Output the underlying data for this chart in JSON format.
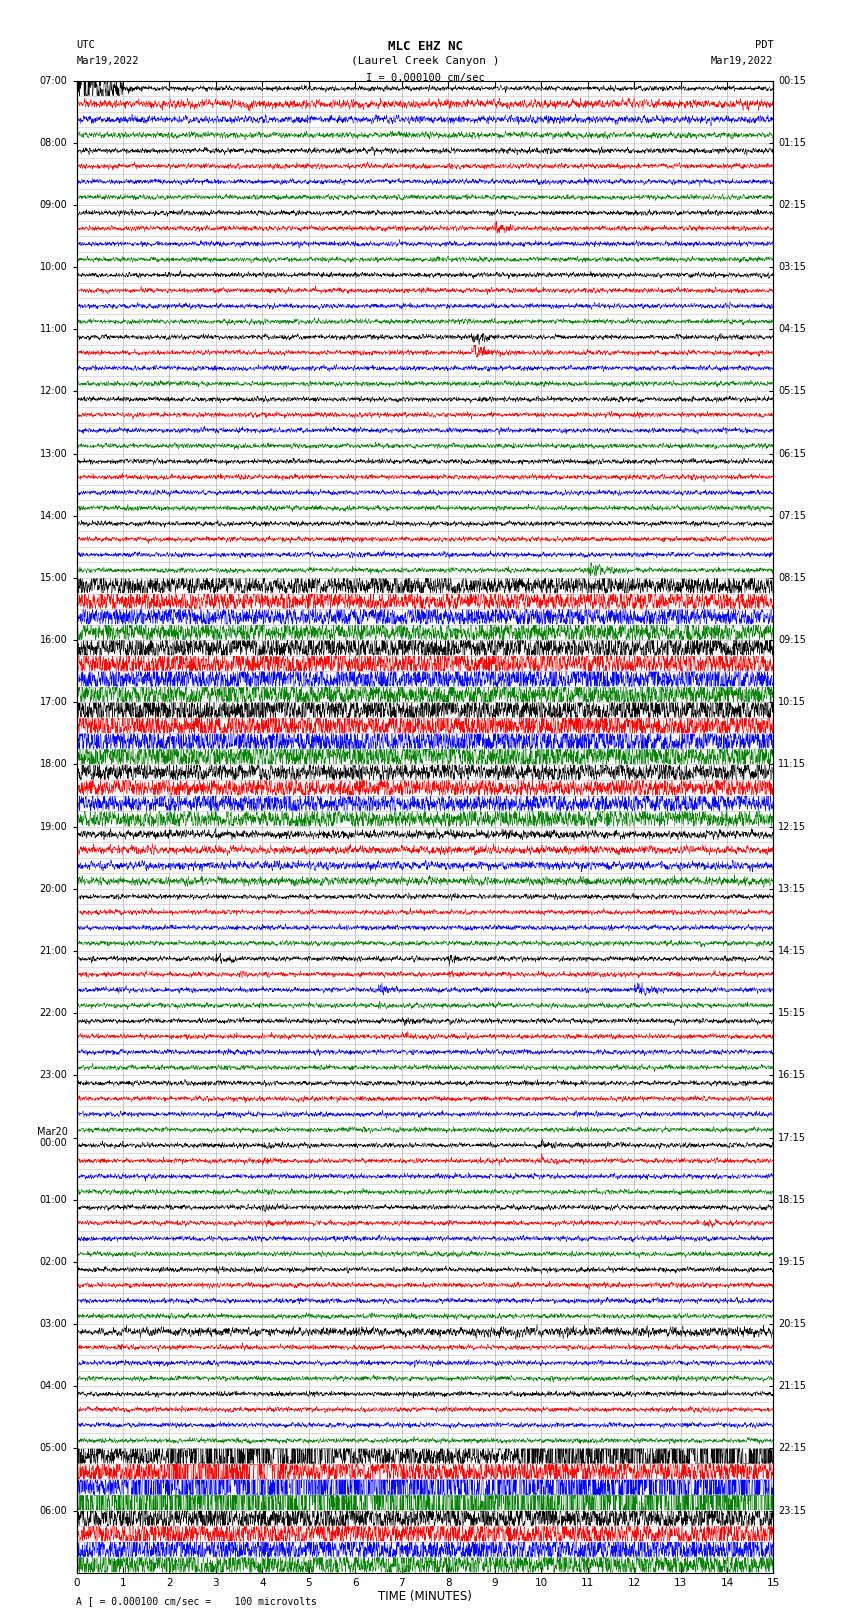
{
  "title_line1": "MLC EHZ NC",
  "title_line2": "(Laurel Creek Canyon )",
  "scale_label": "I = 0.000100 cm/sec",
  "footer_label": "A [ = 0.000100 cm/sec =    100 microvolts",
  "utc_label": "UTC",
  "utc_date": "Mar19,2022",
  "pdt_label": "PDT",
  "pdt_date": "Mar19,2022",
  "xlabel": "TIME (MINUTES)",
  "left_labels": [
    "07:00",
    "08:00",
    "09:00",
    "10:00",
    "11:00",
    "12:00",
    "13:00",
    "14:00",
    "15:00",
    "16:00",
    "17:00",
    "18:00",
    "19:00",
    "20:00",
    "21:00",
    "22:00",
    "23:00",
    "Mar20\n00:00",
    "01:00",
    "02:00",
    "03:00",
    "04:00",
    "05:00",
    "06:00"
  ],
  "left_label_rows": [
    0,
    4,
    8,
    12,
    16,
    20,
    24,
    28,
    32,
    36,
    40,
    44,
    48,
    52,
    56,
    60,
    64,
    68,
    72,
    76,
    80,
    84,
    88,
    92
  ],
  "right_labels": [
    "00:15",
    "01:15",
    "02:15",
    "03:15",
    "04:15",
    "05:15",
    "06:15",
    "07:15",
    "08:15",
    "09:15",
    "10:15",
    "11:15",
    "12:15",
    "13:15",
    "14:15",
    "15:15",
    "16:15",
    "17:15",
    "18:15",
    "19:15",
    "20:15",
    "21:15",
    "22:15",
    "23:15"
  ],
  "right_label_rows": [
    0,
    4,
    8,
    12,
    16,
    20,
    24,
    28,
    32,
    36,
    40,
    44,
    48,
    52,
    56,
    60,
    64,
    68,
    72,
    76,
    80,
    84,
    88,
    92
  ],
  "num_rows": 96,
  "xmin": 0,
  "xmax": 15,
  "colors_cycle": [
    "black",
    "red",
    "blue",
    "green"
  ],
  "bg_color": "white",
  "grid_color": "#888888",
  "noise_seed": 12345
}
